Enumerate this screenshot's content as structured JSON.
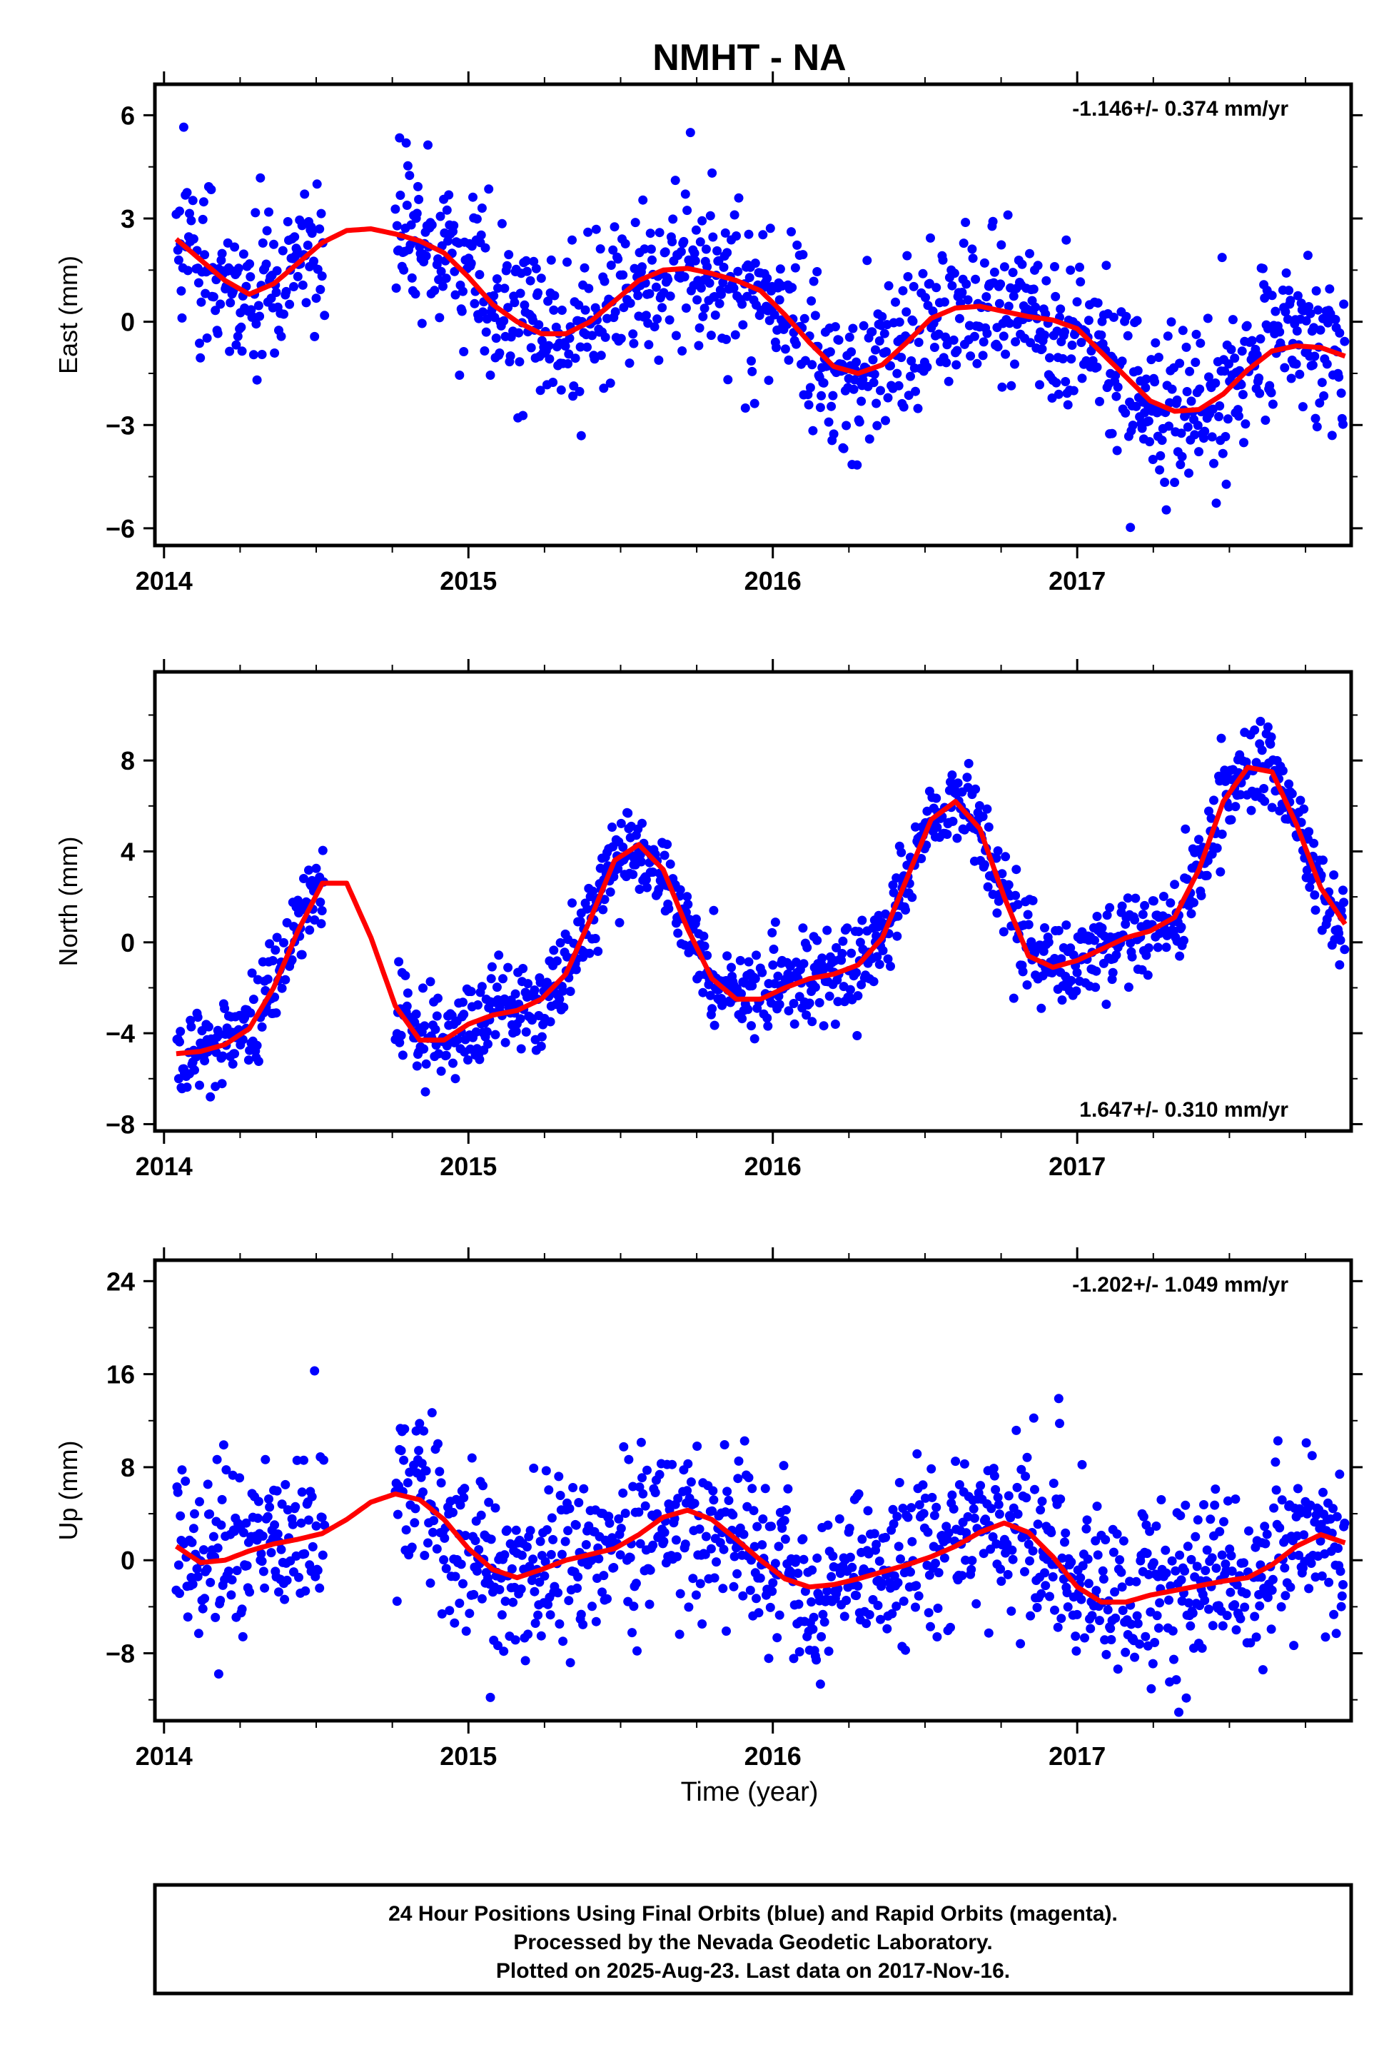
{
  "title": "NMHT - NA",
  "colors": {
    "points": "#0000ff",
    "fit": "#ff0000",
    "axes": "#000000"
  },
  "chart_data": [
    {
      "type": "scatter",
      "ylabel": "East (mm)",
      "rate_label": "-1.146+/- 0.374 mm/yr",
      "xlim": [
        2013.97,
        2017.9
      ],
      "ylim": [
        -6.5,
        6.9
      ],
      "yticks": [
        6,
        3,
        0,
        -3,
        -6
      ],
      "ytick_labels": [
        "6",
        "3",
        "0",
        "−3",
        "−6"
      ],
      "xticks": [
        2014,
        2015,
        2016,
        2017
      ],
      "xtick_labels": [
        "2014",
        "2015",
        "2016",
        "2017"
      ],
      "gaps": [
        [
          2014.53,
          2014.76
        ]
      ],
      "data_start": 2014.04,
      "data_end": 2017.88,
      "scatter_sigma": 1.15,
      "fit_series": {
        "name": "",
        "x": [
          2014.04,
          2014.12,
          2014.2,
          2014.28,
          2014.36,
          2014.44,
          2014.52,
          2014.6,
          2014.68,
          2014.76,
          2014.84,
          2014.92,
          2015.0,
          2015.08,
          2015.16,
          2015.24,
          2015.32,
          2015.4,
          2015.48,
          2015.56,
          2015.64,
          2015.72,
          2015.8,
          2015.88,
          2015.96,
          2016.04,
          2016.12,
          2016.2,
          2016.28,
          2016.36,
          2016.44,
          2016.52,
          2016.6,
          2016.68,
          2016.76,
          2016.84,
          2016.92,
          2017.0,
          2017.08,
          2017.16,
          2017.24,
          2017.32,
          2017.4,
          2017.48,
          2017.56,
          2017.64,
          2017.72,
          2017.8,
          2017.88
        ],
        "values": [
          2.4,
          1.8,
          1.2,
          0.8,
          1.1,
          1.7,
          2.3,
          2.65,
          2.7,
          2.55,
          2.35,
          2.0,
          1.3,
          0.5,
          0.0,
          -0.35,
          -0.35,
          0.0,
          0.6,
          1.2,
          1.5,
          1.55,
          1.4,
          1.2,
          0.9,
          0.2,
          -0.6,
          -1.3,
          -1.5,
          -1.25,
          -0.6,
          0.1,
          0.4,
          0.45,
          0.3,
          0.15,
          0.05,
          -0.2,
          -0.9,
          -1.6,
          -2.3,
          -2.6,
          -2.55,
          -2.1,
          -1.4,
          -0.85,
          -0.7,
          -0.75,
          -1.0
        ]
      }
    },
    {
      "type": "scatter",
      "ylabel": "North (mm)",
      "rate_label": "1.647+/- 0.310 mm/yr",
      "xlim": [
        2013.97,
        2017.9
      ],
      "ylim": [
        -8.3,
        11.9
      ],
      "yticks": [
        8,
        4,
        0,
        -4,
        -8
      ],
      "ytick_labels": [
        "8",
        "4",
        "0",
        "−4",
        "−8"
      ],
      "xticks": [
        2014,
        2015,
        2016,
        2017
      ],
      "xtick_labels": [
        "2014",
        "2015",
        "2016",
        "2017"
      ],
      "gaps": [
        [
          2014.53,
          2014.76
        ]
      ],
      "data_start": 2014.04,
      "data_end": 2017.88,
      "scatter_sigma": 0.95,
      "fit_series": {
        "name": "",
        "x": [
          2014.04,
          2014.12,
          2014.2,
          2014.28,
          2014.36,
          2014.44,
          2014.52,
          2014.6,
          2014.68,
          2014.76,
          2014.84,
          2014.92,
          2015.0,
          2015.08,
          2015.16,
          2015.24,
          2015.32,
          2015.4,
          2015.48,
          2015.56,
          2015.64,
          2015.72,
          2015.8,
          2015.88,
          2015.96,
          2016.04,
          2016.12,
          2016.2,
          2016.28,
          2016.36,
          2016.44,
          2016.52,
          2016.6,
          2016.68,
          2016.76,
          2016.84,
          2016.92,
          2017.0,
          2017.08,
          2017.16,
          2017.24,
          2017.32,
          2017.4,
          2017.48,
          2017.56,
          2017.64,
          2017.72,
          2017.8,
          2017.88
        ],
        "values": [
          -4.9,
          -4.8,
          -4.5,
          -3.8,
          -2.0,
          0.5,
          2.6,
          2.6,
          0.2,
          -2.8,
          -4.3,
          -4.3,
          -3.6,
          -3.2,
          -3.0,
          -2.5,
          -1.4,
          1.0,
          3.6,
          4.3,
          3.2,
          0.6,
          -1.6,
          -2.5,
          -2.5,
          -2.0,
          -1.6,
          -1.4,
          -1.0,
          0.2,
          2.8,
          5.4,
          6.2,
          5.0,
          2.0,
          -0.6,
          -1.1,
          -0.8,
          -0.3,
          0.2,
          0.5,
          1.1,
          3.2,
          6.2,
          7.7,
          7.5,
          5.2,
          2.4,
          0.8
        ]
      }
    },
    {
      "type": "scatter",
      "ylabel": "Up (mm)",
      "rate_label": "-1.202+/- 1.049 mm/yr",
      "xlim": [
        2013.97,
        2017.9
      ],
      "ylim": [
        -13.8,
        25.8
      ],
      "yticks": [
        24,
        16,
        8,
        0,
        -8
      ],
      "ytick_labels": [
        "24",
        "16",
        "8",
        "0",
        "−8"
      ],
      "xticks": [
        2014,
        2015,
        2016,
        2017
      ],
      "xtick_labels": [
        "2014",
        "2015",
        "2016",
        "2017"
      ],
      "xlabel": "Time (year)",
      "gaps": [
        [
          2014.53,
          2014.76
        ]
      ],
      "data_start": 2014.04,
      "data_end": 2017.88,
      "scatter_sigma": 3.6,
      "fit_series": {
        "name": "",
        "x": [
          2014.04,
          2014.12,
          2014.2,
          2014.28,
          2014.36,
          2014.44,
          2014.52,
          2014.6,
          2014.68,
          2014.76,
          2014.84,
          2014.92,
          2015.0,
          2015.08,
          2015.16,
          2015.24,
          2015.32,
          2015.4,
          2015.48,
          2015.56,
          2015.64,
          2015.72,
          2015.8,
          2015.88,
          2015.96,
          2016.04,
          2016.12,
          2016.2,
          2016.28,
          2016.36,
          2016.44,
          2016.52,
          2016.6,
          2016.68,
          2016.76,
          2016.84,
          2016.92,
          2017.0,
          2017.08,
          2017.16,
          2017.24,
          2017.32,
          2017.4,
          2017.48,
          2017.56,
          2017.64,
          2017.72,
          2017.8,
          2017.88
        ],
        "values": [
          1.2,
          -0.2,
          0.0,
          0.8,
          1.4,
          1.8,
          2.3,
          3.5,
          5.0,
          5.7,
          5.2,
          3.5,
          1.0,
          -0.8,
          -1.5,
          -0.8,
          0.0,
          0.5,
          1.0,
          2.2,
          3.7,
          4.3,
          3.5,
          1.8,
          0.0,
          -1.6,
          -2.3,
          -2.1,
          -1.6,
          -1.0,
          -0.4,
          0.3,
          1.2,
          2.4,
          3.2,
          2.4,
          0.3,
          -2.3,
          -3.6,
          -3.6,
          -3.0,
          -2.6,
          -2.2,
          -1.8,
          -1.5,
          -0.4,
          1.2,
          2.2,
          1.5
        ]
      }
    }
  ],
  "footer": {
    "line1": "24 Hour Positions Using Final Orbits (blue) and Rapid Orbits (magenta).",
    "line2": "Processed by the Nevada Geodetic Laboratory.",
    "line3": "Plotted on 2025-Aug-23. Last data on 2017-Nov-16."
  }
}
